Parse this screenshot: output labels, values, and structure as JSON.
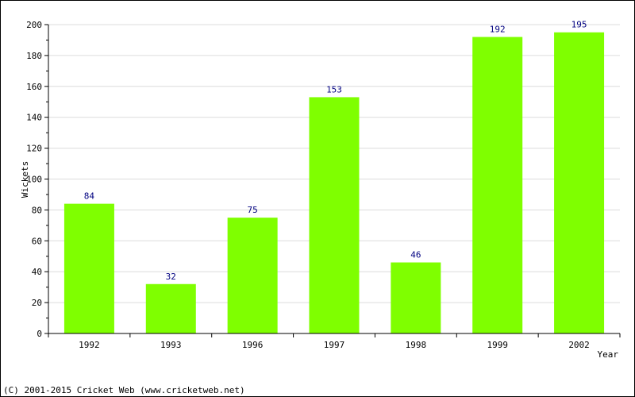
{
  "chart_data": {
    "type": "bar",
    "categories": [
      "1992",
      "1993",
      "1996",
      "1997",
      "1998",
      "1999",
      "2002"
    ],
    "values": [
      84,
      32,
      75,
      153,
      46,
      192,
      195
    ],
    "xlabel": "Year",
    "ylabel": "Wickets",
    "ylim": [
      0,
      200
    ],
    "yticks": [
      0,
      20,
      40,
      60,
      80,
      100,
      120,
      140,
      160,
      180,
      200
    ],
    "grid": true,
    "bar_color": "#7fff00",
    "value_label_color": "#000080"
  },
  "footer": {
    "copyright": "(C) 2001-2015 Cricket Web (www.cricketweb.net)"
  }
}
